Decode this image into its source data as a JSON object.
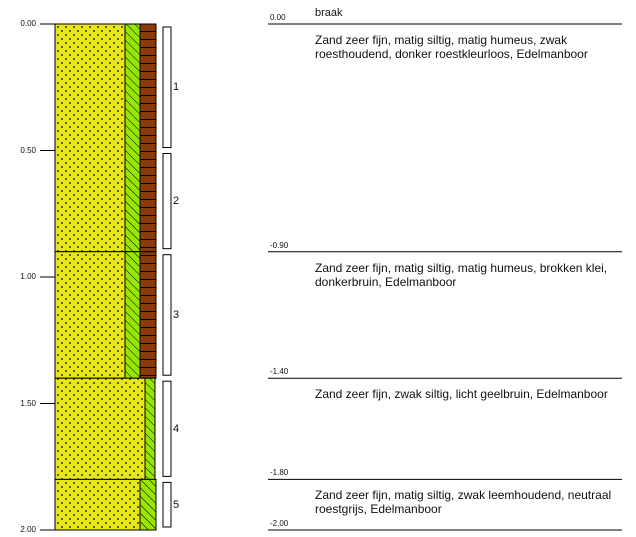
{
  "scale": {
    "ticks": [
      "0.00",
      "0.50",
      "1.00",
      "1.50",
      "2.00"
    ],
    "tick_values": [
      0.0,
      0.5,
      1.0,
      1.5,
      2.0
    ]
  },
  "header_label": "braak",
  "sample_labels": [
    "1",
    "2",
    "3",
    "4",
    "5"
  ],
  "samples": [
    {
      "from": 0.0,
      "to": 0.5
    },
    {
      "from": 0.5,
      "to": 0.9
    },
    {
      "from": 0.9,
      "to": 1.4
    },
    {
      "from": 1.4,
      "to": 1.8
    },
    {
      "from": 1.8,
      "to": 2.0
    }
  ],
  "layers": [
    {
      "top_label": "0.00",
      "from": 0.0,
      "to": 0.9,
      "silt": 0.7,
      "humus": true,
      "description": "Zand zeer fijn, matig siltig, matig humeus, zwak roesthoudend, donker roestkleurloos, Edelmanboor"
    },
    {
      "top_label": "-0.90",
      "from": 0.9,
      "to": 1.4,
      "silt": 0.7,
      "humus": true,
      "description": "Zand zeer fijn, matig siltig, matig humeus, brokken klei, donkerbruin, Edelmanboor"
    },
    {
      "top_label": "-1.40",
      "from": 1.4,
      "to": 1.8,
      "silt": 0.4,
      "humus": false,
      "description": "Zand zeer fijn, zwak siltig, licht geelbruin, Edelmanboor"
    },
    {
      "top_label": "-1.80",
      "from": 1.8,
      "to": 2.0,
      "silt": 0.7,
      "humus": false,
      "description": "Zand zeer fijn, matig siltig, zwak leemhoudend, neutraal roestgrijs, Edelmanboor"
    }
  ],
  "bottom_label": "-2.00",
  "colors": {
    "sand": "#e6e619",
    "silt": "#99e600",
    "humus": "#8b3a0a",
    "line": "#000000"
  }
}
